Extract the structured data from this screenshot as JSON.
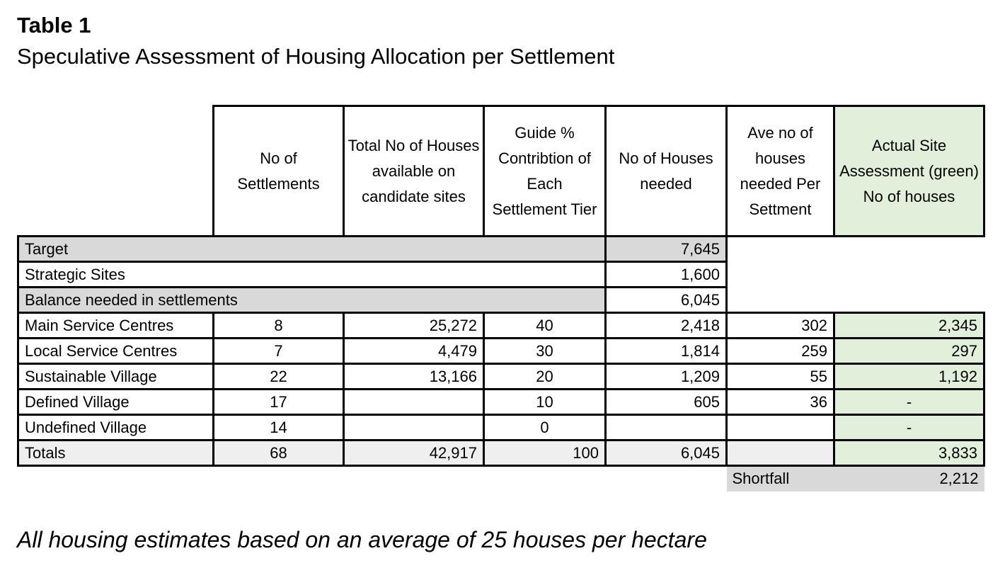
{
  "title": "Table 1",
  "subtitle": "Speculative Assessment of Housing Allocation per Settlement",
  "footnote": "All housing estimates based on an average of 25 houses per hectare",
  "colors": {
    "gray": "#d9d9d9",
    "light_gray": "#efefef",
    "green": "#e2efda"
  },
  "headers": {
    "settlements": "No of Settlements",
    "houses_available": "Total No of Houses available on candidate sites",
    "guide_pct": "Guide % Contribtion of Each Settlement Tier",
    "houses_needed": "No of Houses needed",
    "ave_needed": "Ave no of houses needed Per Settment",
    "actual": "Actual Site Assessment (green) No of houses"
  },
  "summary": [
    {
      "label": "Target",
      "value": "7,645"
    },
    {
      "label": "Strategic Sites",
      "value": "1,600"
    },
    {
      "label": "Balance needed in settlements",
      "value": "6,045"
    }
  ],
  "rows": [
    {
      "label": "Main Service Centres",
      "settlements": "8",
      "houses_available": "25,272",
      "guide_pct": "40",
      "houses_needed": "2,418",
      "ave_needed": "302",
      "actual": "2,345"
    },
    {
      "label": "Local Service Centres",
      "settlements": "7",
      "houses_available": "4,479",
      "guide_pct": "30",
      "houses_needed": "1,814",
      "ave_needed": "259",
      "actual": "297"
    },
    {
      "label": "Sustainable Village",
      "settlements": "22",
      "houses_available": "13,166",
      "guide_pct": "20",
      "houses_needed": "1,209",
      "ave_needed": "55",
      "actual": "1,192"
    },
    {
      "label": "Defined Village",
      "settlements": "17",
      "houses_available": "",
      "guide_pct": "10",
      "houses_needed": "605",
      "ave_needed": "36",
      "actual": "-"
    },
    {
      "label": "Undefined Village",
      "settlements": "14",
      "houses_available": "",
      "guide_pct": "0",
      "houses_needed": "",
      "ave_needed": "",
      "actual": "-"
    }
  ],
  "totals": {
    "label": "Totals",
    "settlements": "68",
    "houses_available": "42,917",
    "guide_pct": "100",
    "houses_needed": "6,045",
    "ave_needed": "",
    "actual": "3,833"
  },
  "shortfall": {
    "label": "Shortfall",
    "value": "2,212"
  }
}
